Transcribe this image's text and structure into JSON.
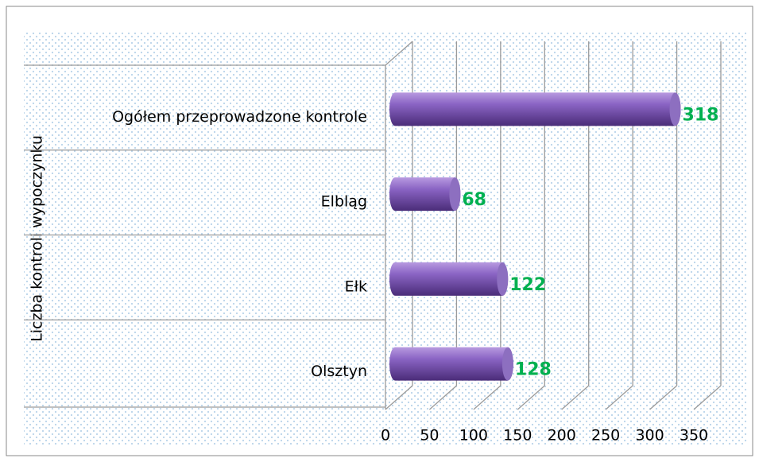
{
  "chart_data": {
    "type": "bar",
    "orientation": "horizontal",
    "y_label": "Liczba kontroli wypoczynku",
    "categories": [
      "Ogółem przeprowadzone kontrole",
      "Elbląg",
      "Ełk",
      "Olsztyn"
    ],
    "values": [
      318,
      68,
      122,
      128
    ],
    "color": "#7a55b0",
    "xlim": [
      0,
      350
    ],
    "xticks": [
      0,
      50,
      100,
      150,
      200,
      250,
      300,
      350
    ],
    "grid": true
  }
}
